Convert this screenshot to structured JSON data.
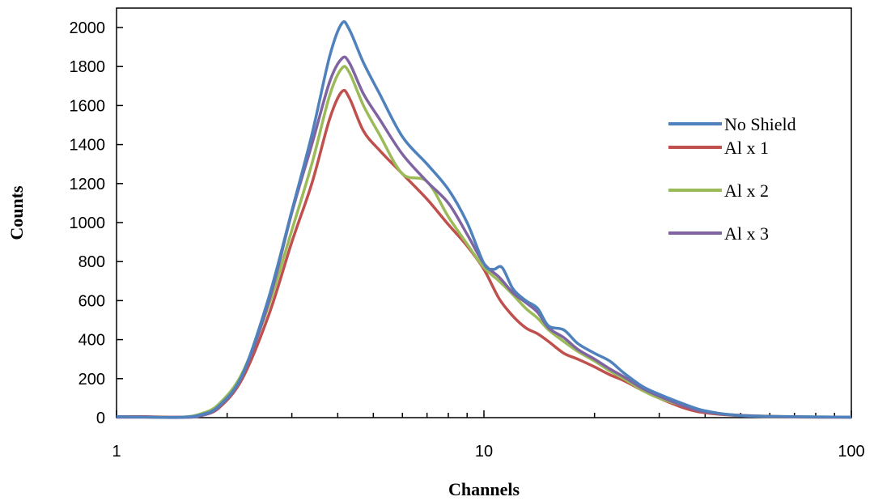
{
  "chart_data": {
    "type": "line",
    "xlabel": "Channels",
    "ylabel": "Counts",
    "xscale": "log",
    "xlim": [
      1,
      100
    ],
    "ylim": [
      0,
      2000
    ],
    "xticks": [
      1,
      10,
      100
    ],
    "yticks": [
      0,
      200,
      400,
      600,
      800,
      1000,
      1200,
      1400,
      1600,
      1800,
      2000
    ],
    "grid": false,
    "legend_position": "right",
    "series": [
      {
        "name": "No Shield",
        "color": "#4F81BD",
        "points": [
          [
            1,
            5
          ],
          [
            1.2,
            3
          ],
          [
            1.5,
            2
          ],
          [
            1.7,
            15
          ],
          [
            1.9,
            60
          ],
          [
            2.2,
            220
          ],
          [
            2.6,
            620
          ],
          [
            3.0,
            1060
          ],
          [
            3.4,
            1450
          ],
          [
            3.8,
            1850
          ],
          [
            4.1,
            2020
          ],
          [
            4.3,
            1990
          ],
          [
            4.7,
            1820
          ],
          [
            5.2,
            1660
          ],
          [
            6.0,
            1440
          ],
          [
            7.0,
            1300
          ],
          [
            8.0,
            1170
          ],
          [
            9.0,
            1000
          ],
          [
            10.0,
            790
          ],
          [
            10.6,
            760
          ],
          [
            11.2,
            770
          ],
          [
            12.0,
            660
          ],
          [
            13.0,
            600
          ],
          [
            14.0,
            560
          ],
          [
            15.0,
            470
          ],
          [
            16.5,
            450
          ],
          [
            18.0,
            380
          ],
          [
            20.0,
            330
          ],
          [
            22.0,
            290
          ],
          [
            24.0,
            230
          ],
          [
            27.0,
            160
          ],
          [
            30.0,
            120
          ],
          [
            35.0,
            70
          ],
          [
            40.0,
            35
          ],
          [
            50.0,
            10
          ],
          [
            70.0,
            5
          ],
          [
            100.0,
            2
          ]
        ]
      },
      {
        "name": "Al x 1",
        "color": "#C0504D",
        "points": [
          [
            1,
            5
          ],
          [
            1.2,
            5
          ],
          [
            1.5,
            3
          ],
          [
            1.7,
            12
          ],
          [
            1.9,
            50
          ],
          [
            2.2,
            200
          ],
          [
            2.6,
            530
          ],
          [
            3.0,
            900
          ],
          [
            3.4,
            1200
          ],
          [
            3.8,
            1530
          ],
          [
            4.1,
            1670
          ],
          [
            4.3,
            1640
          ],
          [
            4.7,
            1470
          ],
          [
            5.2,
            1370
          ],
          [
            6.0,
            1250
          ],
          [
            7.0,
            1120
          ],
          [
            8.0,
            990
          ],
          [
            9.0,
            880
          ],
          [
            10.0,
            760
          ],
          [
            11.0,
            610
          ],
          [
            12.0,
            520
          ],
          [
            13.0,
            460
          ],
          [
            14.0,
            430
          ],
          [
            15.0,
            390
          ],
          [
            16.5,
            330
          ],
          [
            18.0,
            300
          ],
          [
            20.0,
            260
          ],
          [
            22.0,
            220
          ],
          [
            24.0,
            190
          ],
          [
            27.0,
            140
          ],
          [
            30.0,
            100
          ],
          [
            35.0,
            50
          ],
          [
            40.0,
            25
          ],
          [
            50.0,
            10
          ],
          [
            70.0,
            3
          ],
          [
            100.0,
            2
          ]
        ]
      },
      {
        "name": "Al x 2",
        "color": "#9BBB59",
        "points": [
          [
            1,
            3
          ],
          [
            1.2,
            3
          ],
          [
            1.5,
            2
          ],
          [
            1.7,
            20
          ],
          [
            1.9,
            70
          ],
          [
            2.2,
            230
          ],
          [
            2.6,
            580
          ],
          [
            3.0,
            960
          ],
          [
            3.4,
            1300
          ],
          [
            3.8,
            1650
          ],
          [
            4.1,
            1790
          ],
          [
            4.3,
            1770
          ],
          [
            4.7,
            1600
          ],
          [
            5.2,
            1450
          ],
          [
            6.0,
            1250
          ],
          [
            7.0,
            1210
          ],
          [
            8.0,
            1030
          ],
          [
            9.0,
            890
          ],
          [
            10.0,
            770
          ],
          [
            11.0,
            700
          ],
          [
            12.0,
            630
          ],
          [
            13.0,
            560
          ],
          [
            14.0,
            510
          ],
          [
            15.0,
            450
          ],
          [
            16.5,
            390
          ],
          [
            18.0,
            340
          ],
          [
            20.0,
            290
          ],
          [
            22.0,
            240
          ],
          [
            24.0,
            200
          ],
          [
            27.0,
            140
          ],
          [
            30.0,
            100
          ],
          [
            35.0,
            60
          ],
          [
            40.0,
            30
          ],
          [
            50.0,
            12
          ],
          [
            70.0,
            5
          ],
          [
            100.0,
            3
          ]
        ]
      },
      {
        "name": "Al x 3",
        "color": "#8064A2",
        "points": [
          [
            1,
            2
          ],
          [
            1.2,
            2
          ],
          [
            1.5,
            1
          ],
          [
            1.7,
            10
          ],
          [
            1.9,
            55
          ],
          [
            2.2,
            215
          ],
          [
            2.6,
            600
          ],
          [
            3.0,
            1050
          ],
          [
            3.4,
            1400
          ],
          [
            3.8,
            1720
          ],
          [
            4.1,
            1840
          ],
          [
            4.3,
            1820
          ],
          [
            4.7,
            1660
          ],
          [
            5.2,
            1530
          ],
          [
            6.0,
            1350
          ],
          [
            7.0,
            1210
          ],
          [
            8.0,
            1100
          ],
          [
            9.0,
            940
          ],
          [
            10.0,
            790
          ],
          [
            11.0,
            720
          ],
          [
            12.0,
            640
          ],
          [
            13.0,
            590
          ],
          [
            14.0,
            540
          ],
          [
            15.0,
            460
          ],
          [
            16.5,
            410
          ],
          [
            18.0,
            350
          ],
          [
            20.0,
            300
          ],
          [
            22.0,
            250
          ],
          [
            24.0,
            210
          ],
          [
            27.0,
            150
          ],
          [
            30.0,
            110
          ],
          [
            35.0,
            60
          ],
          [
            40.0,
            30
          ],
          [
            50.0,
            12
          ],
          [
            70.0,
            4
          ],
          [
            100.0,
            2
          ]
        ]
      }
    ]
  }
}
